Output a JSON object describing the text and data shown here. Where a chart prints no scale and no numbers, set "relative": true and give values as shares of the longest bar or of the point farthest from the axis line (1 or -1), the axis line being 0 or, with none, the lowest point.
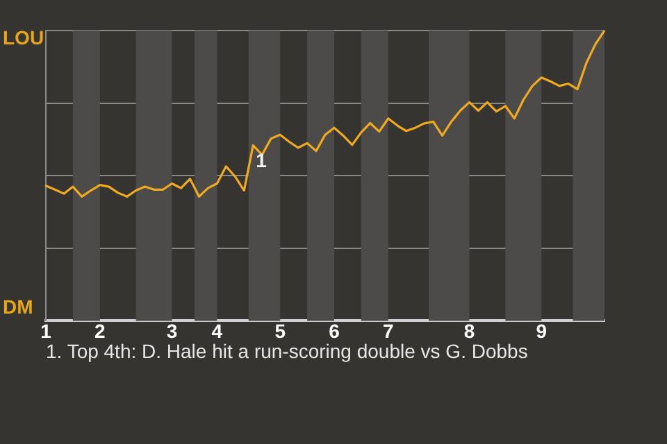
{
  "chart_data": {
    "type": "line",
    "relative": true,
    "categories": [
      "1",
      null,
      null,
      null,
      null,
      null,
      "2",
      null,
      null,
      null,
      null,
      null,
      null,
      null,
      "3",
      null,
      null,
      null,
      null,
      "4",
      null,
      null,
      null,
      null,
      null,
      null,
      "5",
      null,
      null,
      null,
      null,
      null,
      "6",
      null,
      null,
      null,
      null,
      null,
      "7",
      null,
      null,
      null,
      null,
      null,
      null,
      null,
      null,
      "8",
      null,
      null,
      null,
      null,
      null,
      null,
      null,
      "9",
      null,
      null,
      null,
      null,
      null,
      null,
      null
    ],
    "series": [
      {
        "color": "#f0aa1e",
        "values": [
          0.465,
          0.452,
          0.438,
          0.462,
          0.428,
          0.449,
          0.468,
          0.462,
          0.441,
          0.428,
          0.449,
          0.462,
          0.452,
          0.452,
          0.473,
          0.457,
          0.489,
          0.428,
          0.457,
          0.473,
          0.532,
          0.497,
          0.449,
          0.604,
          0.572,
          0.628,
          0.641,
          0.617,
          0.596,
          0.612,
          0.585,
          0.641,
          0.665,
          0.638,
          0.606,
          0.649,
          0.681,
          0.652,
          0.697,
          0.673,
          0.654,
          0.665,
          0.68,
          0.686,
          0.638,
          0.686,
          0.724,
          0.753,
          0.724,
          0.753,
          0.721,
          0.74,
          0.697,
          0.761,
          0.809,
          0.838,
          0.825,
          0.809,
          0.817,
          0.798,
          0.889,
          0.953,
          1
        ]
      }
    ],
    "annotations": [
      "LOU",
      "DM",
      {
        "text": "1",
        "y": 0.604
      },
      "1. Top 4th: D. Hale hit a run-scoring double vs G. Dobbs"
    ],
    "grid": "y",
    "marker": "none",
    "line_style": "solid"
  }
}
